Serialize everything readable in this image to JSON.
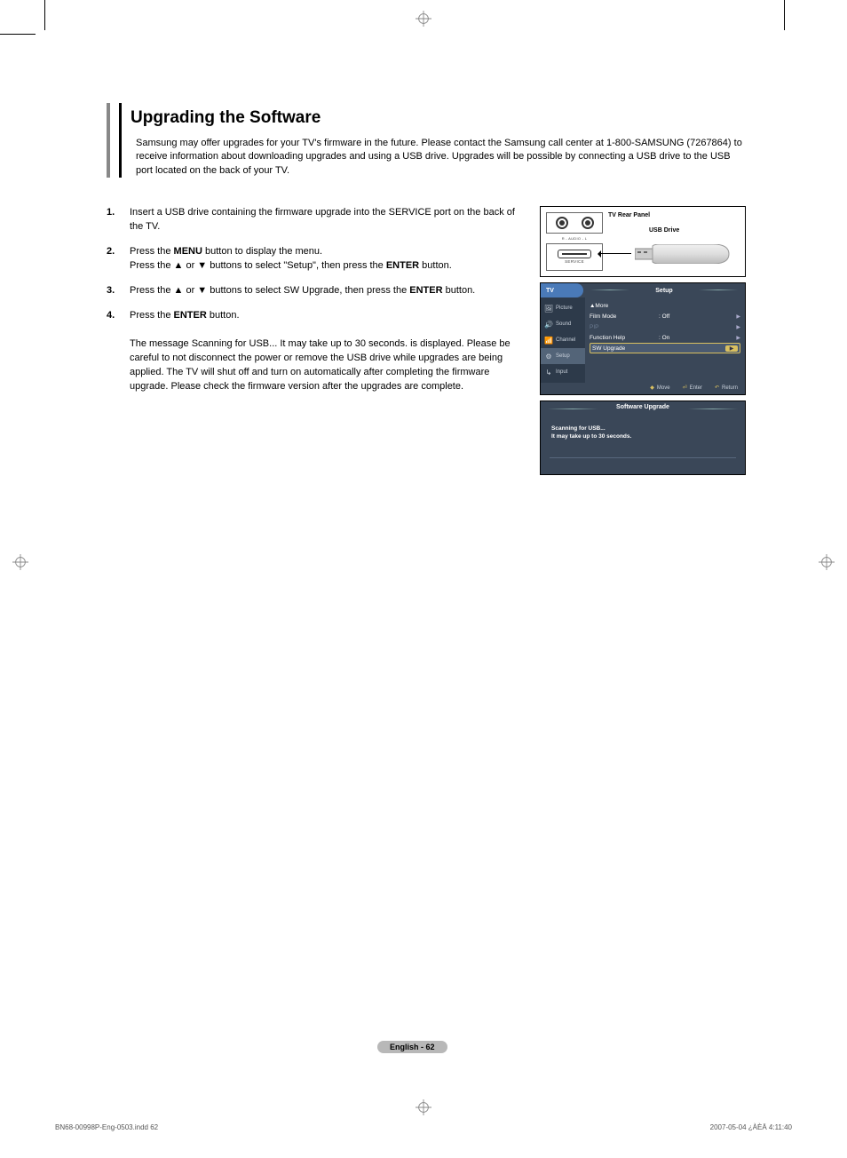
{
  "heading": "Upgrading the Software",
  "intro": "Samsung may offer upgrades for your TV's firmware in the future. Please contact the Samsung call center at 1-800-SAMSUNG (7267864) to receive information about downloading upgrades and using a USB drive. Upgrades will be possible by connecting a USB drive to the USB port located on the back of your TV.",
  "steps": [
    {
      "num": "1.",
      "html": "Insert a USB drive containing the firmware upgrade into the SERVICE port on the back of the TV."
    },
    {
      "num": "2.",
      "html": "Press the <strong>MENU</strong> button to display the menu.<br>Press the ▲ or ▼ buttons to select \"Setup\", then press the <strong>ENTER</strong> button."
    },
    {
      "num": "3.",
      "html": "Press the ▲ or ▼ buttons to select SW Upgrade, then press the <strong>ENTER</strong> button."
    },
    {
      "num": "4.",
      "html": "Press the <strong>ENTER</strong> button.<br><br>The message Scanning for USB... It may take up to 30 seconds. is displayed. Please be careful to not disconnect the power or remove the USB drive while upgrades are being applied. The TV will shut off and turn on automatically after completing the firmware upgrade. Please check the firmware version after the upgrades are complete."
    }
  ],
  "rear_panel": {
    "title": "TV Rear Panel",
    "usb_label": "USB Drive",
    "audio_label": "R - AUDIO - L",
    "service_label": "SERVICE"
  },
  "tv_menu": {
    "tv_label": "TV",
    "title": "Setup",
    "sidebar": [
      {
        "label": "Picture",
        "icon": "🖼",
        "active": false
      },
      {
        "label": "Sound",
        "icon": "🔊",
        "active": false
      },
      {
        "label": "Channel",
        "icon": "📶",
        "active": false
      },
      {
        "label": "Setup",
        "icon": "⚙",
        "active": true
      },
      {
        "label": "Input",
        "icon": "↳",
        "active": false
      }
    ],
    "rows": [
      {
        "label": "▲More",
        "value": "",
        "dim": false,
        "sel": false,
        "arrow": ""
      },
      {
        "label": "Film Mode",
        "value": ": Off",
        "dim": false,
        "sel": false,
        "arrow": "▶"
      },
      {
        "label": "PIP",
        "value": "",
        "dim": true,
        "sel": false,
        "arrow": "▶"
      },
      {
        "label": "Function Help",
        "value": ": On",
        "dim": false,
        "sel": false,
        "arrow": "▶"
      },
      {
        "label": "SW Upgrade",
        "value": "",
        "dim": false,
        "sel": true,
        "arrow": "▶"
      }
    ],
    "footer": {
      "move": "Move",
      "enter": "Enter",
      "return": "Return"
    }
  },
  "sw_upgrade": {
    "title": "Software Upgrade",
    "msg1": "Scanning for USB...",
    "msg2": "It may take up to 30 seconds."
  },
  "page_badge": "English - 62",
  "footer": {
    "left": "BN68-00998P-Eng-0503.indd   62",
    "right": "2007-05-04   ¿ÀÈÄ 4:11:40"
  },
  "colors": {
    "menu_bg": "#3a4758",
    "header_tab": "#4a7ab8",
    "highlight": "#d9c060",
    "sidebar_bg": "#2d3a4a",
    "badge_bg": "#b8b8b8"
  }
}
